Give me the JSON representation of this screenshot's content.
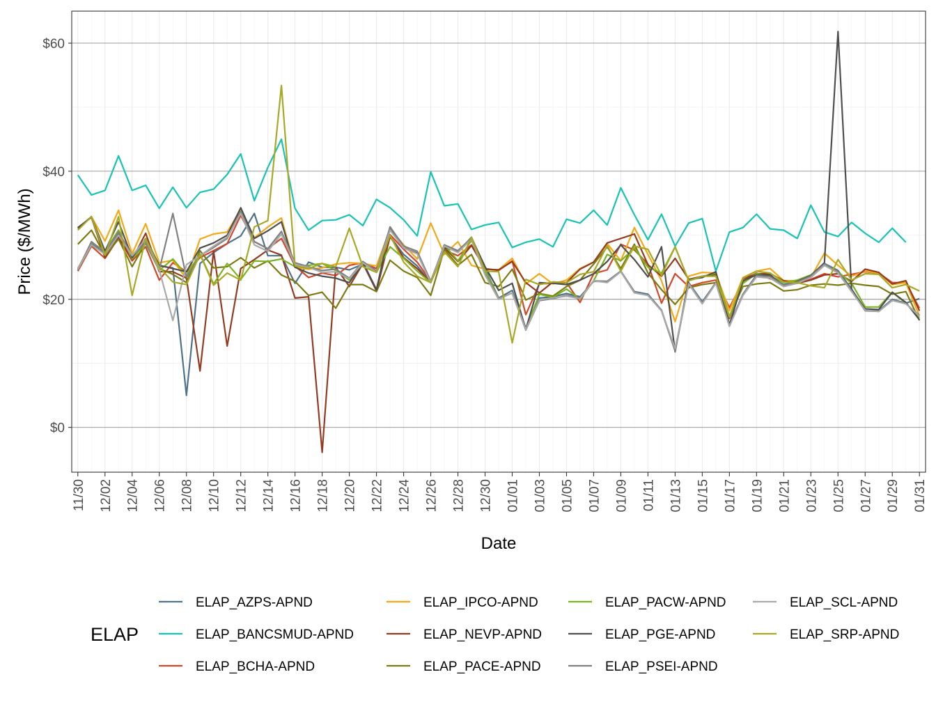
{
  "chart_data": {
    "type": "line",
    "xlabel": "Date",
    "ylabel": "Price ($/MWh)",
    "ylim": [
      -7,
      65
    ],
    "yticks": [
      0,
      20,
      40,
      60
    ],
    "ytick_labels": [
      "$0",
      "$20",
      "$40",
      "$60"
    ],
    "xlim": [
      "2019-11-30",
      "2020-01-31"
    ],
    "xtick_labels": [
      "11/30",
      "12/02",
      "12/04",
      "12/06",
      "12/08",
      "12/10",
      "12/12",
      "12/14",
      "12/16",
      "12/18",
      "12/20",
      "12/22",
      "12/24",
      "12/26",
      "12/28",
      "12/30",
      "01/01",
      "01/03",
      "01/05",
      "01/07",
      "01/09",
      "01/11",
      "01/13",
      "01/15",
      "01/17",
      "01/19",
      "01/21",
      "01/23",
      "01/25",
      "01/27",
      "01/29",
      "01/31"
    ],
    "grid": true,
    "legend_title": "ELAP",
    "legend_position": "bottom",
    "x": [
      "2019-11-30",
      "2019-12-01",
      "2019-12-02",
      "2019-12-03",
      "2019-12-04",
      "2019-12-05",
      "2019-12-06",
      "2019-12-07",
      "2019-12-08",
      "2019-12-09",
      "2019-12-10",
      "2019-12-11",
      "2019-12-12",
      "2019-12-13",
      "2019-12-14",
      "2019-12-15",
      "2019-12-16",
      "2019-12-17",
      "2019-12-18",
      "2019-12-19",
      "2019-12-20",
      "2019-12-21",
      "2019-12-22",
      "2019-12-23",
      "2019-12-24",
      "2019-12-25",
      "2019-12-26",
      "2019-12-27",
      "2019-12-28",
      "2019-12-29",
      "2019-12-30",
      "2019-12-31",
      "2020-01-01",
      "2020-01-02",
      "2020-01-03",
      "2020-01-04",
      "2020-01-05",
      "2020-01-06",
      "2020-01-07",
      "2020-01-08",
      "2020-01-09",
      "2020-01-10",
      "2020-01-11",
      "2020-01-12",
      "2020-01-13",
      "2020-01-14",
      "2020-01-15",
      "2020-01-16",
      "2020-01-17",
      "2020-01-18",
      "2020-01-19",
      "2020-01-20",
      "2020-01-21",
      "2020-01-22",
      "2020-01-23",
      "2020-01-24",
      "2020-01-25",
      "2020-01-26",
      "2020-01-27",
      "2020-01-28",
      "2020-01-29",
      "2020-01-30",
      "2020-01-31"
    ],
    "series": [
      {
        "name": "ELAP_AZPS-APND",
        "color": "#4e7289",
        "values": [
          24.8,
          28.6,
          27.2,
          30.3,
          26.6,
          29.1,
          25.2,
          24.9,
          5.0,
          25.6,
          27.3,
          28.7,
          29.9,
          33.4,
          26.8,
          26.8,
          22.5,
          25.8,
          25.0,
          25.0,
          24.6,
          25.5,
          24.8,
          29.8,
          27.0,
          25.2,
          22.6,
          28.2,
          27.4,
          29.7,
          24.8,
          20.2,
          21.4,
          15.5,
          20.2,
          20.4,
          20.9,
          20.4,
          22.8,
          22.8,
          24.4,
          21.2,
          20.8,
          18.3,
          12.0,
          22.6,
          19.6,
          22.6,
          16.0,
          20.8,
          23.8,
          23.4,
          22.3,
          22.8,
          23.7,
          25.6,
          24.5,
          21.6,
          18.4,
          18.2,
          20.0,
          19.4,
          20.1
        ]
      },
      {
        "name": "ELAP_BANCSMUD-APND",
        "color": "#17c3b2",
        "values": [
          39.4,
          36.3,
          37.0,
          42.4,
          37.0,
          37.8,
          34.2,
          37.5,
          34.3,
          36.7,
          37.2,
          39.5,
          42.7,
          35.4,
          40.6,
          45.0,
          34.2,
          30.8,
          32.3,
          32.4,
          33.2,
          31.5,
          35.6,
          34.3,
          32.4,
          29.9,
          39.9,
          34.6,
          34.9,
          30.9,
          31.6,
          32.0,
          28.1,
          28.9,
          29.4,
          28.2,
          32.5,
          31.9,
          33.9,
          31.6,
          37.4,
          33.2,
          29.3,
          33.3,
          28.3,
          31.9,
          32.6,
          24.4,
          30.5,
          31.2,
          33.3,
          31.0,
          30.8,
          29.5,
          34.7,
          30.5,
          29.8,
          32.0,
          30.3,
          28.9,
          31.1,
          28.9,
          null
        ]
      },
      {
        "name": "ELAP_BCHA-APND",
        "color": "#d2462a",
        "values": [
          24.4,
          28.3,
          26.4,
          29.6,
          26.0,
          28.2,
          23.0,
          25.7,
          24.3,
          26.5,
          27.6,
          28.7,
          33.1,
          29.0,
          27.9,
          29.5,
          25.2,
          23.4,
          24.1,
          23.7,
          25.3,
          25.7,
          24.8,
          30.1,
          27.8,
          25.8,
          22.8,
          27.7,
          26.8,
          28.5,
          24.8,
          24.5,
          26.0,
          17.6,
          22.4,
          22.5,
          22.6,
          19.5,
          24.0,
          24.6,
          28.6,
          27.7,
          25.5,
          19.4,
          24.0,
          22.0,
          22.6,
          23.0,
          18.7,
          22.8,
          24.1,
          23.2,
          22.8,
          22.5,
          23.1,
          24.0,
          23.5,
          23.9,
          24.3,
          24.1,
          22.6,
          22.6,
          18.6
        ]
      },
      {
        "name": "ELAP_IPCO-APND",
        "color": "#f5a816",
        "values": [
          31.0,
          32.9,
          29.1,
          33.9,
          27.1,
          31.8,
          25.7,
          26.1,
          23.2,
          29.4,
          30.2,
          30.5,
          34.0,
          29.6,
          31.3,
          32.7,
          25.0,
          24.7,
          24.9,
          25.5,
          25.7,
          25.6,
          25.2,
          31.0,
          28.5,
          26.3,
          31.9,
          27.0,
          29.0,
          25.3,
          24.7,
          24.6,
          26.4,
          22.4,
          24.0,
          22.4,
          23.0,
          24.8,
          25.8,
          28.7,
          26.0,
          31.2,
          27.0,
          22.9,
          16.5,
          23.6,
          24.2,
          24.1,
          18.2,
          23.4,
          24.4,
          24.8,
          22.9,
          22.9,
          23.4,
          27.2,
          25.3,
          23.6,
          24.4,
          24.1,
          22.3,
          22.6,
          17.4
        ]
      },
      {
        "name": "ELAP_NEVP-APND",
        "color": "#943a20",
        "values": [
          31.2,
          32.8,
          26.5,
          29.8,
          26.2,
          30.3,
          24.3,
          24.3,
          23.3,
          8.8,
          27.5,
          12.7,
          24.8,
          26.2,
          27.7,
          26.9,
          20.2,
          20.4,
          -3.9,
          25.0,
          22.0,
          25.6,
          21.3,
          29.8,
          26.5,
          24.8,
          22.6,
          28.1,
          25.9,
          28.4,
          24.7,
          24.6,
          25.9,
          22.6,
          21.0,
          22.7,
          22.6,
          24.7,
          25.8,
          28.8,
          29.5,
          30.2,
          25.4,
          23.6,
          26.4,
          23.1,
          23.6,
          23.9,
          17.0,
          23.2,
          24.0,
          24.0,
          22.9,
          22.5,
          23.0,
          23.8,
          24.0,
          22.8,
          24.7,
          24.2,
          22.4,
          22.9,
          18.2
        ]
      },
      {
        "name": "ELAP_PACE-APND",
        "color": "#7c7a10",
        "values": [
          28.6,
          30.8,
          26.8,
          29.4,
          25.1,
          28.8,
          24.8,
          23.9,
          22.6,
          27.6,
          24.9,
          25.1,
          26.5,
          24.9,
          26.0,
          23.8,
          22.8,
          20.6,
          21.1,
          18.6,
          22.3,
          22.3,
          21.2,
          26.1,
          24.4,
          23.4,
          20.6,
          27.8,
          25.3,
          27.0,
          22.6,
          22.0,
          24.7,
          19.9,
          20.9,
          20.5,
          22.0,
          23.0,
          25.5,
          28.2,
          24.8,
          28.6,
          24.1,
          21.5,
          19.2,
          21.8,
          22.3,
          22.6,
          17.3,
          22.0,
          22.4,
          22.6,
          21.3,
          21.5,
          22.2,
          22.4,
          22.2,
          22.5,
          22.2,
          22.0,
          20.8,
          21.2,
          16.7
        ]
      },
      {
        "name": "ELAP_PACW-APND",
        "color": "#7ab320",
        "values": [
          24.7,
          28.9,
          27.5,
          30.8,
          26.3,
          28.7,
          24.5,
          26.3,
          23.8,
          27.1,
          22.4,
          25.6,
          23.1,
          26.0,
          25.9,
          26.3,
          25.1,
          25.3,
          25.6,
          24.5,
          23.0,
          25.6,
          24.2,
          28.2,
          26.4,
          24.4,
          22.6,
          28.5,
          26.0,
          29.2,
          24.6,
          20.1,
          21.0,
          15.4,
          20.8,
          20.3,
          21.6,
          20.0,
          22.9,
          27.0,
          26.0,
          28.0,
          25.0,
          24.1,
          28.2,
          22.9,
          23.5,
          24.1,
          17.3,
          22.5,
          24.0,
          23.6,
          22.6,
          23.0,
          23.8,
          25.5,
          24.3,
          22.5,
          18.8,
          18.8,
          21.1,
          19.4,
          17.1
        ]
      },
      {
        "name": "ELAP_PGE-APND",
        "color": "#4e4e4e",
        "values": [
          31.1,
          32.9,
          27.5,
          32.1,
          26.5,
          29.5,
          25.3,
          24.8,
          24.3,
          28.0,
          28.8,
          30.0,
          34.3,
          29.5,
          30.7,
          32.1,
          25.0,
          24.1,
          23.6,
          23.3,
          22.6,
          25.8,
          21.5,
          31.3,
          28.0,
          27.2,
          22.8,
          28.2,
          27.4,
          29.6,
          25.1,
          21.4,
          22.5,
          15.3,
          22.6,
          22.5,
          22.3,
          23.0,
          24.0,
          25.9,
          28.5,
          26.2,
          23.5,
          28.2,
          11.8,
          23.1,
          23.4,
          24.3,
          16.0,
          22.9,
          23.8,
          23.8,
          22.1,
          22.8,
          23.7,
          25.7,
          61.8,
          21.4,
          18.5,
          18.4,
          21.1,
          19.5,
          16.8
        ]
      },
      {
        "name": "ELAP_PSEI-APND",
        "color": "#808080",
        "values": [
          24.6,
          29.0,
          27.3,
          30.5,
          26.8,
          28.8,
          24.6,
          33.4,
          23.4,
          26.8,
          28.1,
          29.5,
          33.7,
          29.0,
          27.9,
          30.6,
          25.7,
          25.1,
          24.5,
          24.7,
          23.3,
          25.9,
          24.4,
          31.3,
          28.3,
          27.5,
          22.8,
          28.5,
          27.6,
          29.6,
          24.0,
          20.1,
          21.0,
          15.2,
          19.8,
          20.1,
          20.6,
          20.2,
          22.9,
          22.8,
          24.4,
          21.1,
          20.6,
          18.2,
          11.9,
          22.5,
          19.4,
          22.6,
          15.8,
          20.8,
          23.7,
          23.5,
          22.2,
          22.7,
          23.6,
          25.5,
          24.3,
          21.3,
          18.2,
          18.1,
          19.9,
          19.3,
          17.5
        ]
      },
      {
        "name": "ELAP_SCL-APND",
        "color": "#a9a9a9",
        "values": [
          24.7,
          28.5,
          27.0,
          30.0,
          26.8,
          29.4,
          24.6,
          16.7,
          25.4,
          26.8,
          28.3,
          29.7,
          33.4,
          28.5,
          27.5,
          30.2,
          25.4,
          25.0,
          24.2,
          24.3,
          23.2,
          25.7,
          24.2,
          30.8,
          28.0,
          27.1,
          22.6,
          28.3,
          27.3,
          29.4,
          23.8,
          20.0,
          21.0,
          15.3,
          19.9,
          20.2,
          20.5,
          20.1,
          22.9,
          22.6,
          24.3,
          21.0,
          20.6,
          18.2,
          12.3,
          22.4,
          19.3,
          22.5,
          15.8,
          20.6,
          23.5,
          23.3,
          22.0,
          22.5,
          23.4,
          25.3,
          24.1,
          21.2,
          18.3,
          18.1,
          19.8,
          19.3,
          17.4
        ]
      },
      {
        "name": "ELAP_SRP-APND",
        "color": "#a7a824",
        "values": [
          30.8,
          32.9,
          26.9,
          32.9,
          20.6,
          29.5,
          25.0,
          22.7,
          22.3,
          27.0,
          22.2,
          24.1,
          23.0,
          31.3,
          32.3,
          53.4,
          25.2,
          24.8,
          25.6,
          25.1,
          31.1,
          25.1,
          24.2,
          30.0,
          25.8,
          23.6,
          22.6,
          27.4,
          25.1,
          29.7,
          24.4,
          24.3,
          13.2,
          23.1,
          22.3,
          22.7,
          22.6,
          23.9,
          24.3,
          28.4,
          24.4,
          28.3,
          27.8,
          23.7,
          28.2,
          22.9,
          23.6,
          23.6,
          17.2,
          23.3,
          24.4,
          24.1,
          22.7,
          22.6,
          22.1,
          21.8,
          26.2,
          23.0,
          24.0,
          23.9,
          21.8,
          22.3,
          21.3
        ]
      }
    ]
  }
}
